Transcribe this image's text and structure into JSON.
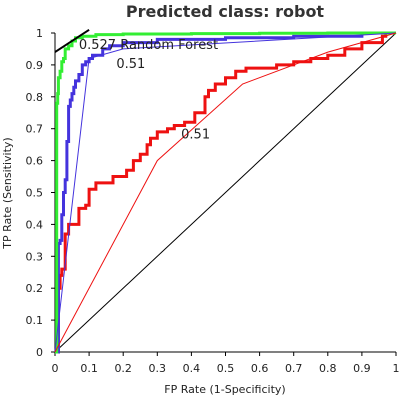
{
  "chart_data": {
    "type": "line",
    "title": "Predicted class: robot",
    "xlabel": "FP Rate (1-Specificity)",
    "ylabel": "TP Rate (Sensitivity)",
    "xlim": [
      0,
      1
    ],
    "ylim": [
      0,
      1
    ],
    "xticks": [
      0,
      0.1,
      0.2,
      0.3,
      0.4,
      0.5,
      0.6,
      0.7,
      0.8,
      0.9,
      1
    ],
    "xtick_labels": [
      "0",
      "0.1",
      "0.2",
      "0.3",
      "0.4",
      "0.5",
      "0.6",
      "0.7",
      "0.8",
      "0.9",
      "1"
    ],
    "yticks": [
      0,
      0.1,
      0.2,
      0.3,
      0.4,
      0.5,
      0.6,
      0.7,
      0.8,
      0.9,
      1
    ],
    "ytick_labels": [
      "0",
      "0.1",
      "0.2",
      "0.3",
      "0.4",
      "0.5",
      "0.6",
      "0.7",
      "0.8",
      "0.9",
      "1"
    ],
    "grid": false,
    "series": [
      {
        "color": "#33ee33",
        "x": [
          0,
          0.005,
          0.008,
          0.01,
          0.015,
          0.02,
          0.025,
          0.03,
          0.04,
          0.05,
          0.06,
          0.08,
          0.12,
          0.2,
          0.4,
          0.6,
          0.8,
          1
        ],
        "y": [
          0,
          0.78,
          0.81,
          0.86,
          0.88,
          0.91,
          0.92,
          0.95,
          0.96,
          0.975,
          0.985,
          0.99,
          0.995,
          0.997,
          0.998,
          0.999,
          1,
          1
        ],
        "fit_x": [
          0,
          0.1
        ],
        "fit_y": [
          0.94,
          1.01
        ],
        "fit_color": "#000000"
      },
      {
        "color": "#4433dd",
        "x": [
          0,
          0.01,
          0.015,
          0.02,
          0.025,
          0.03,
          0.035,
          0.04,
          0.045,
          0.05,
          0.055,
          0.06,
          0.07,
          0.08,
          0.09,
          0.1,
          0.11,
          0.12,
          0.14,
          0.16,
          0.2,
          0.3,
          0.5,
          0.7,
          0.9,
          1
        ],
        "y": [
          0,
          0.34,
          0.35,
          0.43,
          0.5,
          0.54,
          0.66,
          0.77,
          0.79,
          0.81,
          0.83,
          0.85,
          0.87,
          0.9,
          0.91,
          0.92,
          0.93,
          0.93,
          0.95,
          0.96,
          0.97,
          0.98,
          0.985,
          0.99,
          1,
          1
        ],
        "fit_x": [
          0,
          0.1,
          0.2,
          1
        ],
        "fit_y": [
          0,
          0.92,
          0.95,
          1
        ],
        "fit_color": "#4433dd"
      },
      {
        "color": "#ee1111",
        "x": [
          0,
          0.01,
          0.015,
          0.02,
          0.03,
          0.04,
          0.05,
          0.06,
          0.07,
          0.09,
          0.1,
          0.12,
          0.14,
          0.17,
          0.19,
          0.21,
          0.23,
          0.25,
          0.27,
          0.28,
          0.3,
          0.33,
          0.35,
          0.38,
          0.41,
          0.44,
          0.45,
          0.47,
          0.5,
          0.53,
          0.56,
          0.6,
          0.65,
          0.7,
          0.75,
          0.8,
          0.85,
          0.9,
          0.96,
          0.97,
          1
        ],
        "y": [
          0,
          0.2,
          0.24,
          0.26,
          0.37,
          0.4,
          0.4,
          0.4,
          0.45,
          0.46,
          0.51,
          0.53,
          0.53,
          0.55,
          0.55,
          0.57,
          0.6,
          0.62,
          0.65,
          0.67,
          0.69,
          0.7,
          0.71,
          0.72,
          0.75,
          0.8,
          0.82,
          0.84,
          0.86,
          0.88,
          0.89,
          0.89,
          0.9,
          0.91,
          0.92,
          0.93,
          0.95,
          0.97,
          0.99,
          1,
          1
        ],
        "fit_x": [
          0,
          0.3,
          0.55,
          0.8,
          1
        ],
        "fit_y": [
          0,
          0.6,
          0.84,
          0.94,
          1
        ],
        "fit_color": "#ee1111"
      }
    ],
    "diagonal_color": "#000000",
    "annotations": [
      {
        "text": "0.527 Random Forest",
        "x": 0.07,
        "y": 0.95
      },
      {
        "text": "0.51",
        "x": 0.18,
        "y": 0.89
      },
      {
        "text": "0.51",
        "x": 0.37,
        "y": 0.67
      }
    ]
  }
}
